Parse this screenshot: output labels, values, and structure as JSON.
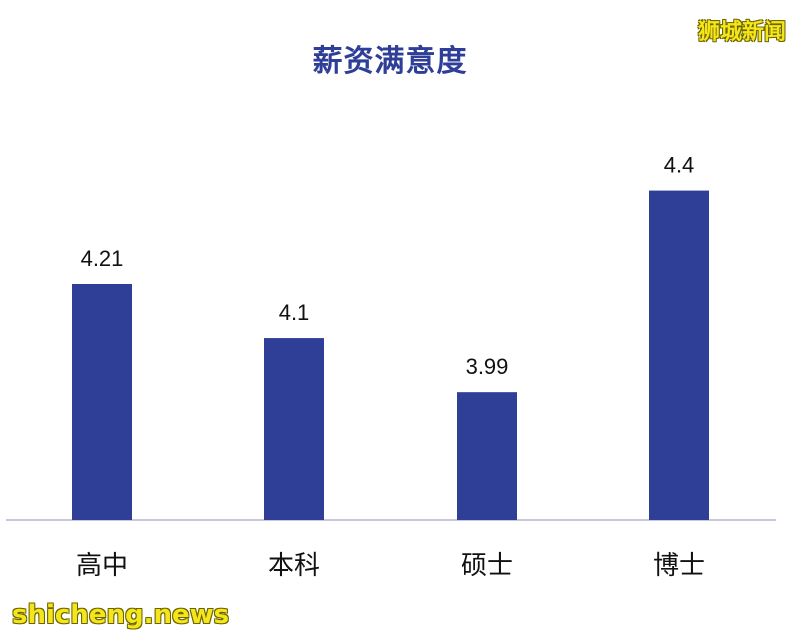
{
  "chart_data": {
    "type": "bar",
    "title": "薪资满意度",
    "categories": [
      "高中",
      "本科",
      "硕士",
      "博士"
    ],
    "values": [
      4.21,
      4.1,
      3.99,
      4.4
    ],
    "value_labels": [
      "4.21",
      "4.1",
      "3.99",
      "4.4"
    ],
    "ylim": [
      3.73,
      4.45
    ],
    "grid": false,
    "legend": "none",
    "bar_color": "#2f3f98",
    "axis_color": "#c8c8d8"
  },
  "watermarks": {
    "top_right": "狮城新闻",
    "bottom_left": "shicheng.news"
  }
}
